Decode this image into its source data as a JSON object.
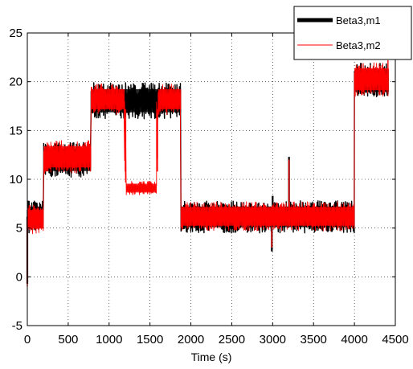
{
  "chart_data": {
    "type": "line",
    "title": "",
    "xlabel": "Time (s)",
    "ylabel": "",
    "xlim": [
      0,
      4500
    ],
    "ylim": [
      -5,
      25
    ],
    "xticks": [
      0,
      500,
      1000,
      1500,
      2000,
      2500,
      3000,
      3500,
      4000,
      4500
    ],
    "yticks": [
      -5,
      0,
      5,
      10,
      15,
      20,
      25
    ],
    "grid": true,
    "legend_position": "top-right",
    "series": [
      {
        "name": "Beta3,m1",
        "color": "#000000",
        "line_style": "thick",
        "bands": [
          {
            "t0": 0,
            "t1": 200,
            "low": 4.5,
            "high": 7.8
          },
          {
            "t0": 200,
            "t1": 780,
            "low": 10.2,
            "high": 13.8
          },
          {
            "t0": 780,
            "t1": 1880,
            "low": 16.2,
            "high": 19.9
          },
          {
            "t0": 1880,
            "t1": 4000,
            "low": 4.5,
            "high": 7.8
          },
          {
            "t0": 4000,
            "t1": 4420,
            "low": 18.3,
            "high": 21.9
          }
        ],
        "spikes": [
          {
            "x": 0,
            "y": -0.7
          },
          {
            "x": 2990,
            "y": 2.6
          },
          {
            "x": 3000,
            "y": 8.3
          },
          {
            "x": 3200,
            "y": 12.3
          }
        ]
      },
      {
        "name": "Beta3,m2",
        "color": "#ff0000",
        "line_style": "thin",
        "bands": [
          {
            "t0": 0,
            "t1": 200,
            "low": 4.4,
            "high": 7.4
          },
          {
            "t0": 200,
            "t1": 780,
            "low": 10.6,
            "high": 14.0
          },
          {
            "t0": 780,
            "t1": 1190,
            "low": 16.6,
            "high": 19.8
          },
          {
            "t0": 1190,
            "t1": 1210,
            "low": 9.0,
            "high": 19.0
          },
          {
            "t0": 1210,
            "t1": 1580,
            "low": 8.4,
            "high": 9.8
          },
          {
            "t0": 1580,
            "t1": 1600,
            "low": 9.0,
            "high": 19.0
          },
          {
            "t0": 1600,
            "t1": 1880,
            "low": 16.6,
            "high": 19.8
          },
          {
            "t0": 1880,
            "t1": 4000,
            "low": 4.7,
            "high": 7.7
          },
          {
            "t0": 4000,
            "t1": 4420,
            "low": 18.5,
            "high": 22.0
          }
        ],
        "spikes": [
          {
            "x": 0,
            "y": -1.0
          },
          {
            "x": 2990,
            "y": 3.0
          },
          {
            "x": 3200,
            "y": 12.0
          },
          {
            "x": 4410,
            "y": 22.2
          }
        ]
      }
    ]
  }
}
